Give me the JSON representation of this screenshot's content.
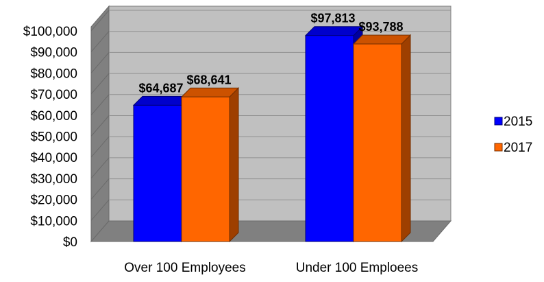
{
  "chart_data": {
    "type": "bar",
    "categories": [
      "Over 100 Employees",
      "Under 100 Emploees"
    ],
    "series": [
      {
        "name": "2015",
        "values": [
          64687,
          97813
        ],
        "color": "#0000ff"
      },
      {
        "name": "2017",
        "values": [
          68641,
          93788
        ],
        "color": "#ff6600"
      }
    ],
    "value_labels": [
      [
        "$64,687",
        "$97,813"
      ],
      [
        "$68,641",
        "$93,788"
      ]
    ],
    "ylim": [
      0,
      100000
    ],
    "yticks": [
      0,
      10000,
      20000,
      30000,
      40000,
      50000,
      60000,
      70000,
      80000,
      90000,
      100000
    ],
    "ytick_labels": [
      "$0",
      "$10,000",
      "$20,000",
      "$30,000",
      "$40,000",
      "$50,000",
      "$60,000",
      "$70,000",
      "$80,000",
      "$90,000",
      "$100,000"
    ],
    "grid": true,
    "legend_position": "right",
    "style": "3d-bar",
    "wall_color": "#c0c0c0",
    "floor_color": "#808080"
  }
}
